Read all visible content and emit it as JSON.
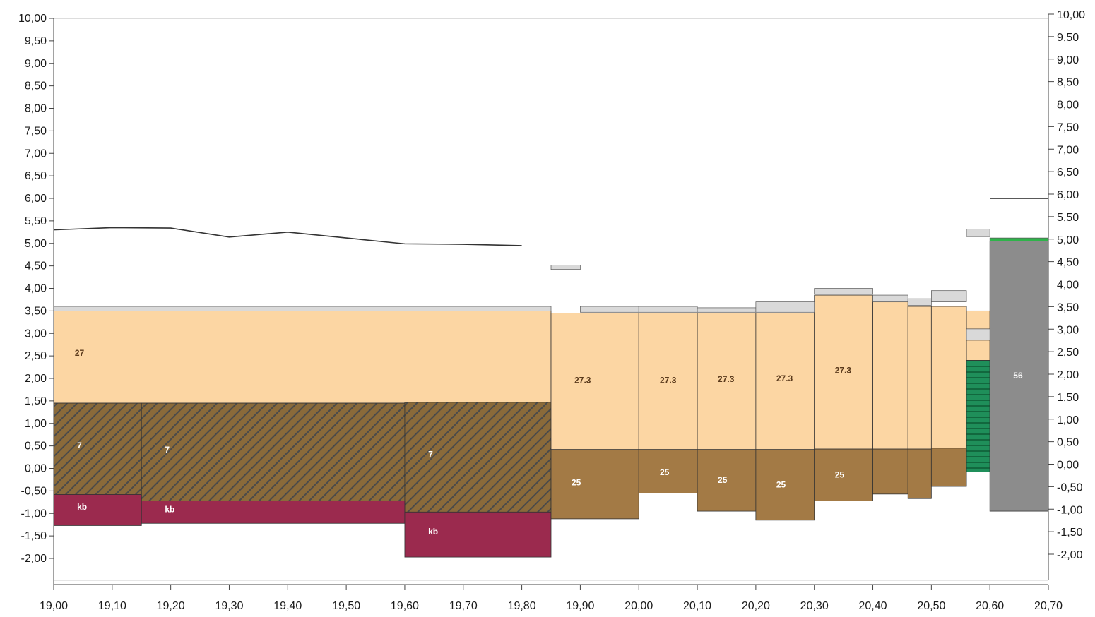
{
  "chart_data": {
    "type": "soil-profile-cross-section",
    "xlim": [
      19.0,
      20.7
    ],
    "ylim": [
      -2.5,
      10.0
    ],
    "x_ticks": [
      "19,00",
      "19,10",
      "19,20",
      "19,30",
      "19,40",
      "19,50",
      "19,60",
      "19,70",
      "19,80",
      "19,90",
      "20,00",
      "20,10",
      "20,20",
      "20,30",
      "20,40",
      "20,50",
      "20,60",
      "20,70"
    ],
    "x_tick_values": [
      19.0,
      19.1,
      19.2,
      19.3,
      19.4,
      19.5,
      19.6,
      19.7,
      19.8,
      19.9,
      20.0,
      20.1,
      20.2,
      20.3,
      20.4,
      20.5,
      20.6,
      20.7
    ],
    "y_ticks_left": [
      "10,00",
      "9,50",
      "9,00",
      "8,50",
      "8,00",
      "7,50",
      "7,00",
      "6,50",
      "6,00",
      "5,50",
      "5,00",
      "4,50",
      "4,00",
      "3,50",
      "3,00",
      "2,50",
      "2,00",
      "1,50",
      "1,00",
      "0,50",
      "0,00",
      "-0,50",
      "-1,00",
      "-1,50",
      "-2,00"
    ],
    "y_tick_values_left": [
      10,
      9.5,
      9,
      8.5,
      8,
      7.5,
      7,
      6.5,
      6,
      5.5,
      5,
      4.5,
      4,
      3.5,
      3,
      2.5,
      2,
      1.5,
      1,
      0.5,
      0,
      -0.5,
      -1,
      -1.5,
      -2
    ],
    "y_ticks_right": [
      "10,00",
      "9,50",
      "9,00",
      "8,50",
      "8,00",
      "7,50",
      "7,00",
      "6,50",
      "6,00",
      "5,50",
      "5,00",
      "4,50",
      "4,00",
      "3,50",
      "3,00",
      "2,50",
      "2,00",
      "1,50",
      "1,00",
      "0,50",
      "0,00",
      "-0,50",
      "-1,00",
      "-1,50",
      "-2,00"
    ],
    "y_tick_values_right": [
      10,
      9.5,
      9,
      8.5,
      8,
      7.5,
      7,
      6.5,
      6,
      5.5,
      5,
      4.5,
      4,
      3.5,
      3,
      2.5,
      2,
      1.5,
      1,
      0.5,
      0,
      -0.5,
      -1,
      -1.5,
      -2
    ],
    "surface_line": {
      "x": [
        19.0,
        19.1,
        19.2,
        19.3,
        19.4,
        19.5,
        19.6,
        19.7,
        19.8
      ],
      "y": [
        5.3,
        5.35,
        5.34,
        5.14,
        5.25,
        5.12,
        4.99,
        4.98,
        4.95
      ]
    },
    "water_level_line": {
      "x": [
        20.6,
        20.7
      ],
      "y": [
        6.0,
        6.0
      ]
    },
    "layers": [
      {
        "x0": 19.0,
        "x1": 19.85,
        "top": 3.5,
        "bottom": 1.45,
        "kind": "sand",
        "label": "27",
        "label_x": 19.036,
        "label_y": 2.5
      },
      {
        "x0": 19.0,
        "x1": 19.15,
        "top": 1.45,
        "bottom": -0.58,
        "kind": "peat",
        "label": "7",
        "label_x": 19.04,
        "label_y": 0.45
      },
      {
        "x0": 19.15,
        "x1": 19.6,
        "top": 1.45,
        "bottom": -0.72,
        "kind": "peat",
        "label": "7",
        "label_x": 19.19,
        "label_y": 0.35
      },
      {
        "x0": 19.6,
        "x1": 19.85,
        "top": 1.47,
        "bottom": -0.97,
        "kind": "peat",
        "label": "7",
        "label_x": 19.64,
        "label_y": 0.25
      },
      {
        "x0": 19.0,
        "x1": 19.15,
        "top": -0.58,
        "bottom": -1.27,
        "kind": "clay",
        "label": "kb",
        "label_x": 19.04,
        "label_y": -0.92
      },
      {
        "x0": 19.15,
        "x1": 19.6,
        "top": -0.72,
        "bottom": -1.22,
        "kind": "clay",
        "label": "kb",
        "label_x": 19.19,
        "label_y": -0.97
      },
      {
        "x0": 19.6,
        "x1": 19.85,
        "top": -0.97,
        "bottom": -1.97,
        "kind": "clay",
        "label": "kb",
        "label_x": 19.64,
        "label_y": -1.47
      },
      {
        "x0": 19.85,
        "x1": 20.0,
        "top": 3.45,
        "bottom": 0.42,
        "kind": "sand",
        "label": "27.3",
        "label_x": 19.89,
        "label_y": 1.9
      },
      {
        "x0": 20.0,
        "x1": 20.1,
        "top": 3.45,
        "bottom": 0.42,
        "kind": "sand",
        "label": "27.3",
        "label_x": 20.036,
        "label_y": 1.9
      },
      {
        "x0": 20.1,
        "x1": 20.2,
        "top": 3.45,
        "bottom": 0.42,
        "kind": "sand",
        "label": "27.3",
        "label_x": 20.135,
        "label_y": 1.92
      },
      {
        "x0": 20.2,
        "x1": 20.3,
        "top": 3.45,
        "bottom": 0.42,
        "kind": "sand",
        "label": "27.3",
        "label_x": 20.235,
        "label_y": 1.94
      },
      {
        "x0": 20.3,
        "x1": 20.4,
        "top": 3.85,
        "bottom": 0.43,
        "kind": "sand",
        "label": "27.3",
        "label_x": 20.335,
        "label_y": 2.12
      },
      {
        "x0": 20.4,
        "x1": 20.46,
        "top": 3.7,
        "bottom": 0.43,
        "kind": "sand",
        "label": "",
        "label_x": 0,
        "label_y": 0
      },
      {
        "x0": 20.46,
        "x1": 20.5,
        "top": 3.6,
        "bottom": 0.43,
        "kind": "sand",
        "label": "",
        "label_x": 0,
        "label_y": 0
      },
      {
        "x0": 20.5,
        "x1": 20.56,
        "top": 3.6,
        "bottom": 0.45,
        "kind": "sand",
        "label": "",
        "label_x": 0,
        "label_y": 0
      },
      {
        "x0": 20.56,
        "x1": 20.6,
        "top": 3.5,
        "bottom": 3.1,
        "kind": "sand",
        "label": "",
        "label_x": 0,
        "label_y": 0
      },
      {
        "x0": 20.56,
        "x1": 20.6,
        "top": 2.85,
        "bottom": 2.4,
        "kind": "sand",
        "label": "",
        "label_x": 0,
        "label_y": 0
      },
      {
        "x0": 19.85,
        "x1": 20.0,
        "top": 0.42,
        "bottom": -1.12,
        "kind": "loam",
        "label": "25",
        "label_x": 19.885,
        "label_y": -0.38
      },
      {
        "x0": 20.0,
        "x1": 20.1,
        "top": 0.42,
        "bottom": -0.55,
        "kind": "loam",
        "label": "25",
        "label_x": 20.036,
        "label_y": -0.15
      },
      {
        "x0": 20.1,
        "x1": 20.2,
        "top": 0.42,
        "bottom": -0.95,
        "kind": "loam",
        "label": "25",
        "label_x": 20.135,
        "label_y": -0.32
      },
      {
        "x0": 20.2,
        "x1": 20.3,
        "top": 0.42,
        "bottom": -1.15,
        "kind": "loam",
        "label": "25",
        "label_x": 20.235,
        "label_y": -0.42
      },
      {
        "x0": 20.3,
        "x1": 20.4,
        "top": 0.43,
        "bottom": -0.72,
        "kind": "loam",
        "label": "25",
        "label_x": 20.335,
        "label_y": -0.2
      },
      {
        "x0": 20.4,
        "x1": 20.46,
        "top": 0.43,
        "bottom": -0.57,
        "kind": "loam",
        "label": "",
        "label_x": 0,
        "label_y": 0
      },
      {
        "x0": 20.46,
        "x1": 20.5,
        "top": 0.43,
        "bottom": -0.67,
        "kind": "loam",
        "label": "",
        "label_x": 0,
        "label_y": 0
      },
      {
        "x0": 20.5,
        "x1": 20.56,
        "top": 0.45,
        "bottom": -0.4,
        "kind": "loam",
        "label": "",
        "label_x": 0,
        "label_y": 0
      },
      {
        "x0": 20.56,
        "x1": 20.6,
        "top": 2.4,
        "bottom": -0.08,
        "kind": "green",
        "label": "",
        "label_x": 0,
        "label_y": 0
      },
      {
        "x0": 20.6,
        "x1": 20.7,
        "top": 5.05,
        "bottom": -0.95,
        "kind": "concrete",
        "label": "56",
        "label_x": 20.64,
        "label_y": 2.0
      }
    ],
    "thin_layers": [
      {
        "x0": 19.0,
        "x1": 19.85,
        "top": 3.6,
        "bottom": 3.5,
        "kind": "fill"
      },
      {
        "x0": 19.9,
        "x1": 20.0,
        "top": 3.6,
        "bottom": 3.47,
        "kind": "fill"
      },
      {
        "x0": 20.0,
        "x1": 20.1,
        "top": 3.6,
        "bottom": 3.47,
        "kind": "fill"
      },
      {
        "x0": 20.1,
        "x1": 20.2,
        "top": 3.57,
        "bottom": 3.47,
        "kind": "fill"
      },
      {
        "x0": 20.2,
        "x1": 20.3,
        "top": 3.7,
        "bottom": 3.47,
        "kind": "fill"
      },
      {
        "x0": 20.3,
        "x1": 20.4,
        "top": 4.0,
        "bottom": 3.87,
        "kind": "fill"
      },
      {
        "x0": 20.4,
        "x1": 20.46,
        "top": 3.85,
        "bottom": 3.7,
        "kind": "fill"
      },
      {
        "x0": 20.46,
        "x1": 20.5,
        "top": 3.77,
        "bottom": 3.62,
        "kind": "fill"
      },
      {
        "x0": 20.5,
        "x1": 20.56,
        "top": 3.95,
        "bottom": 3.7,
        "kind": "fill"
      },
      {
        "x0": 20.56,
        "x1": 20.6,
        "top": 3.1,
        "bottom": 2.85,
        "kind": "fill"
      },
      {
        "x0": 19.85,
        "x1": 19.9,
        "top": 4.52,
        "bottom": 4.42,
        "kind": "fill"
      },
      {
        "x0": 20.56,
        "x1": 20.6,
        "top": 5.32,
        "bottom": 5.15,
        "kind": "fill"
      },
      {
        "x0": 20.6,
        "x1": 20.7,
        "top": 5.12,
        "bottom": 5.05,
        "kind": "grass"
      }
    ]
  },
  "colors": {
    "sand": "#fcd6a3",
    "peat_base": "#8a6a3a",
    "peat_hatch": "#4a4a4a",
    "clay": "#9b2a4e",
    "loam": "#a37a45",
    "green": "#1f8f5a",
    "green_stripe": "#0e5a34",
    "concrete": "#8c8c8c",
    "fill": "#d9d9d9",
    "grass": "#2fb34a",
    "line": "#333333",
    "axis": "#444444"
  }
}
